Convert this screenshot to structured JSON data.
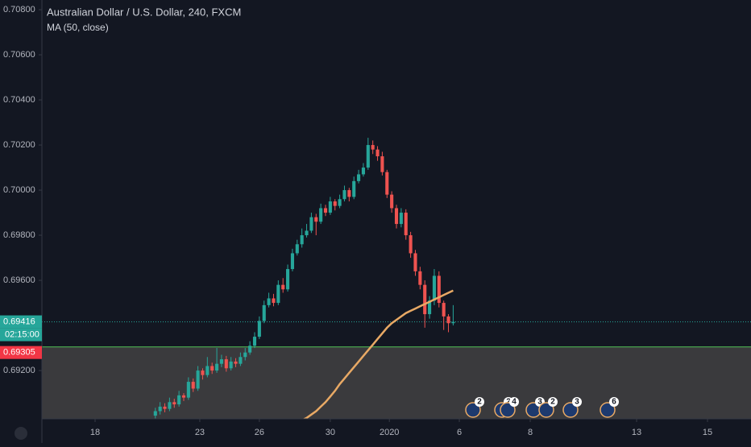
{
  "chart_data": {
    "type": "candlestick",
    "title": "Australian Dollar / U.S. Dollar, 240, FXCM",
    "subtitle": "MA (50, close)",
    "up_color": "#26a69a",
    "down_color": "#ef5350",
    "ma_color": "#e8a965",
    "x": [
      24,
      25,
      26,
      27,
      28,
      29,
      30,
      31,
      32,
      33,
      34,
      35,
      36,
      37,
      38,
      39,
      40,
      41,
      42,
      43,
      44,
      45,
      46,
      47,
      48,
      49,
      50,
      51,
      52,
      53,
      54,
      55,
      56,
      57,
      58,
      59,
      60,
      61,
      62,
      63,
      64,
      65,
      66,
      67,
      68,
      69,
      70,
      71,
      72,
      73,
      74,
      75,
      76,
      77,
      78,
      79,
      80,
      81,
      82,
      83,
      84,
      85,
      86,
      87
    ],
    "open": [
      0.69,
      0.6902,
      0.6904,
      0.6903,
      0.6906,
      0.6905,
      0.6909,
      0.6908,
      0.6915,
      0.6912,
      0.692,
      0.6918,
      0.6922,
      0.692,
      0.6923,
      0.6925,
      0.6921,
      0.6924,
      0.6923,
      0.6926,
      0.6928,
      0.6931,
      0.6935,
      0.6942,
      0.6949,
      0.6952,
      0.695,
      0.6958,
      0.6956,
      0.6965,
      0.6972,
      0.6976,
      0.698,
      0.6982,
      0.6988,
      0.6986,
      0.6992,
      0.699,
      0.6995,
      0.6993,
      0.6996,
      0.7,
      0.6997,
      0.7004,
      0.7007,
      0.701,
      0.702,
      0.7018,
      0.7015,
      0.7008,
      0.6998,
      0.6992,
      0.6985,
      0.699,
      0.698,
      0.6972,
      0.6964,
      0.6958,
      0.6945,
      0.6951,
      0.6962,
      0.695,
      0.6944,
      0.6941
    ],
    "high": [
      0.69035,
      0.6906,
      0.69055,
      0.6908,
      0.69075,
      0.6911,
      0.691,
      0.6917,
      0.69165,
      0.6922,
      0.6921,
      0.6926,
      0.69235,
      0.693,
      0.6927,
      0.69265,
      0.6926,
      0.69255,
      0.6928,
      0.693,
      0.6933,
      0.6937,
      0.6944,
      0.6951,
      0.69545,
      0.6954,
      0.696,
      0.6961,
      0.6967,
      0.6974,
      0.6978,
      0.6983,
      0.6985,
      0.699,
      0.69895,
      0.6994,
      0.69935,
      0.6997,
      0.6996,
      0.6998,
      0.7002,
      0.7001,
      0.7006,
      0.7009,
      0.7012,
      0.70232,
      0.7022,
      0.70195,
      0.7017,
      0.7009,
      0.69995,
      0.69935,
      0.6992,
      0.69915,
      0.69815,
      0.69735,
      0.6966,
      0.696,
      0.6953,
      0.6965,
      0.6964,
      0.6951,
      0.6945,
      0.6949
    ],
    "low": [
      0.68985,
      0.69005,
      0.69015,
      0.6902,
      0.69035,
      0.6904,
      0.69065,
      0.6907,
      0.69105,
      0.6911,
      0.6916,
      0.6917,
      0.69185,
      0.6919,
      0.69215,
      0.69195,
      0.692,
      0.69215,
      0.6922,
      0.69245,
      0.6927,
      0.693,
      0.6934,
      0.6941,
      0.6948,
      0.69485,
      0.6949,
      0.69545,
      0.6955,
      0.6964,
      0.6971,
      0.69745,
      0.6979,
      0.6981,
      0.698,
      0.6985,
      0.69885,
      0.6989,
      0.6991,
      0.6992,
      0.6995,
      0.6995,
      0.6996,
      0.7003,
      0.7006,
      0.7009,
      0.7016,
      0.7013,
      0.70065,
      0.69965,
      0.699,
      0.6983,
      0.69835,
      0.6978,
      0.697,
      0.6962,
      0.6956,
      0.6939,
      0.6943,
      0.6949,
      0.6948,
      0.6938,
      0.6937,
      0.694
    ],
    "close": [
      0.6902,
      0.6904,
      0.6903,
      0.6906,
      0.6905,
      0.6909,
      0.6908,
      0.6915,
      0.6912,
      0.692,
      0.6918,
      0.6922,
      0.692,
      0.6923,
      0.6925,
      0.6921,
      0.6924,
      0.6923,
      0.6926,
      0.6928,
      0.6931,
      0.6935,
      0.6942,
      0.6949,
      0.6952,
      0.695,
      0.6958,
      0.6956,
      0.6965,
      0.6972,
      0.6976,
      0.698,
      0.6982,
      0.6988,
      0.6986,
      0.6992,
      0.699,
      0.6995,
      0.6993,
      0.6996,
      0.7,
      0.6997,
      0.7004,
      0.7007,
      0.701,
      0.702,
      0.7018,
      0.7015,
      0.7008,
      0.6998,
      0.6992,
      0.6985,
      0.699,
      0.698,
      0.6972,
      0.6964,
      0.6958,
      0.6945,
      0.6951,
      0.6962,
      0.695,
      0.6944,
      0.6941,
      0.69416
    ],
    "ma": [
      null,
      null,
      null,
      null,
      null,
      null,
      null,
      null,
      null,
      null,
      null,
      null,
      null,
      null,
      null,
      null,
      null,
      null,
      null,
      null,
      null,
      null,
      null,
      null,
      null,
      null,
      null,
      null,
      null,
      null,
      0.6897,
      0.6898,
      0.6899,
      0.69005,
      0.6902,
      0.6904,
      0.6906,
      0.69085,
      0.6911,
      0.6914,
      0.69165,
      0.6919,
      0.69215,
      0.6924,
      0.69265,
      0.6929,
      0.69315,
      0.6934,
      0.69365,
      0.6939,
      0.6941,
      0.69425,
      0.6944,
      0.69455,
      0.69465,
      0.69475,
      0.69485,
      0.69495,
      0.69505,
      0.69515,
      0.69525,
      0.69535,
      0.69545,
      0.69555
    ],
    "xlim": [
      0,
      150
    ],
    "ylim": [
      0.68986,
      0.70843
    ],
    "yticks": [
      {
        "value": 0.708,
        "label": "0.70800"
      },
      {
        "value": 0.706,
        "label": "0.70600"
      },
      {
        "value": 0.704,
        "label": "0.70400"
      },
      {
        "value": 0.702,
        "label": "0.70200"
      },
      {
        "value": 0.7,
        "label": "0.70000"
      },
      {
        "value": 0.698,
        "label": "0.69800"
      },
      {
        "value": 0.696,
        "label": "0.69600"
      },
      {
        "value": 0.692,
        "label": "0.69200"
      }
    ],
    "xticks": [
      {
        "value": 11.25,
        "label": "18"
      },
      {
        "value": 33.4,
        "label": "23"
      },
      {
        "value": 46.0,
        "label": "26"
      },
      {
        "value": 61.0,
        "label": "30"
      },
      {
        "value": 73.5,
        "label": "2020"
      },
      {
        "value": 88.3,
        "label": "6"
      },
      {
        "value": 103.3,
        "label": "8"
      },
      {
        "value": 125.8,
        "label": "13"
      },
      {
        "value": 140.8,
        "label": "15"
      }
    ],
    "last_price": 0.69416,
    "countdown": "02:15:00",
    "level": 0.69305,
    "events": [
      "2",
      "2",
      "4",
      "3",
      "2",
      "3",
      "6"
    ]
  }
}
